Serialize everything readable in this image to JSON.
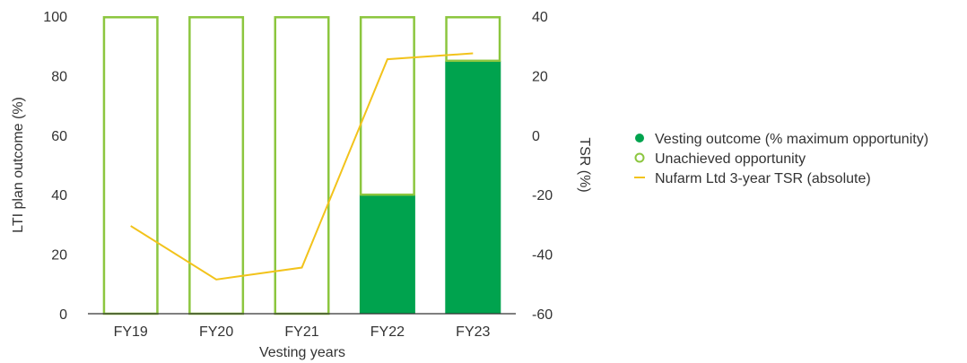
{
  "colors": {
    "vested": "#00a34e",
    "unachieved_outline": "#8cc63f",
    "tsr_line": "#f2c31b",
    "axis": "#333333",
    "text": "#333333"
  },
  "chart_data": {
    "type": "bar",
    "categories": [
      "FY19",
      "FY20",
      "FY21",
      "FY22",
      "FY23"
    ],
    "series": [
      {
        "name": "Vesting outcome (% maximum opportunity)",
        "type": "bar",
        "axis": "left",
        "values": [
          0,
          0,
          0,
          40,
          85
        ]
      },
      {
        "name": "Unachieved opportunity",
        "type": "bar-outline",
        "axis": "left",
        "values": [
          100,
          100,
          100,
          60,
          15
        ]
      },
      {
        "name": "Nufarm Ltd 3-year TSR (absolute)",
        "type": "line",
        "axis": "right",
        "values": [
          -30.5,
          -48.5,
          -44.5,
          25.5,
          27.5
        ]
      }
    ],
    "xlabel": "Vesting years",
    "ylabel": "LTI plan outcome (%)",
    "y2label": "TSR (%)",
    "ylim": [
      0,
      100
    ],
    "y2lim": [
      -60,
      40
    ],
    "yticks": [
      0,
      20,
      40,
      60,
      80,
      100
    ],
    "y2ticks": [
      -60,
      -40,
      -20,
      0,
      20,
      40
    ],
    "grid": false,
    "legend_position": "right"
  }
}
